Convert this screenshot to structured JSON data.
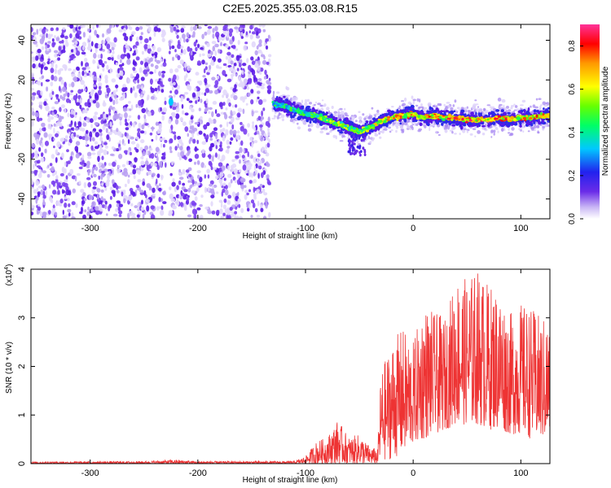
{
  "title": "C2E5.2025.355.03.08.R15",
  "chart_data": [
    {
      "type": "heatmap",
      "xlabel": "Height of straight line (km)",
      "ylabel": "Frequency (Hz)",
      "xlim": [
        -355,
        127
      ],
      "ylim": [
        -50,
        48
      ],
      "x_ticks": [
        -300,
        -200,
        -100,
        0,
        100
      ],
      "x_tick_labels": [
        "-300",
        "-200",
        "-100",
        "0",
        "100"
      ],
      "y_ticks": [
        -40,
        -20,
        0,
        20,
        40
      ],
      "y_tick_labels": [
        "-40",
        "-20",
        "0",
        "20",
        "40"
      ],
      "colorbar": {
        "label": "Normalized spectral amplitude",
        "range": [
          0.0,
          0.9
        ],
        "ticks": [
          0.0,
          0.2,
          0.4,
          0.6,
          0.8
        ],
        "tick_labels": [
          "0.0",
          "0.2",
          "0.4",
          "0.6",
          "0.8"
        ]
      },
      "noise_region_x": [
        -355,
        -133
      ],
      "gap_x": -228,
      "ridge": {
        "x": [
          -130,
          -120,
          -110,
          -100,
          -90,
          -80,
          -70,
          -60,
          -50,
          -40,
          -30,
          -20,
          -10,
          0,
          10,
          20,
          30,
          40,
          50,
          60,
          70,
          80,
          90,
          100,
          110,
          120,
          127
        ],
        "freq": [
          8,
          7,
          5,
          3,
          2,
          0,
          -2,
          -4,
          -6,
          -4,
          -1,
          1,
          2,
          3,
          1,
          2,
          1,
          1,
          0,
          0,
          0,
          1,
          0,
          1,
          1,
          2,
          2
        ],
        "level": [
          0.45,
          0.5,
          0.5,
          0.5,
          0.55,
          0.6,
          0.65,
          0.6,
          0.6,
          0.65,
          0.7,
          0.75,
          0.75,
          0.75,
          0.8,
          0.8,
          0.8,
          0.85,
          0.85,
          0.85,
          0.85,
          0.8,
          0.8,
          0.8,
          0.8,
          0.75,
          0.75
        ]
      }
    },
    {
      "type": "line",
      "xlabel": "Height of straight line (km)",
      "ylabel": "SNR (10 * v/v)",
      "y_multiplier_label": "(x10",
      "y_multiplier_exp": "4",
      "y_multiplier_close": ")",
      "xlim": [
        -355,
        127
      ],
      "ylim": [
        0,
        4
      ],
      "x_ticks": [
        -300,
        -200,
        -100,
        0,
        100
      ],
      "x_tick_labels": [
        "-300",
        "-200",
        "-100",
        "0",
        "100"
      ],
      "y_ticks": [
        0,
        1,
        2,
        3,
        4
      ],
      "y_tick_labels": [
        "0",
        "1",
        "2",
        "3",
        "4"
      ],
      "series": [
        {
          "name": "SNR",
          "color": "#ee3333",
          "x": [
            -355,
            -250,
            -220,
            -200,
            -110,
            -100,
            -90,
            -80,
            -70,
            -60,
            -50,
            -40,
            -33,
            -30,
            -20,
            -10,
            0,
            10,
            20,
            30,
            40,
            50,
            60,
            70,
            80,
            90,
            100,
            110,
            120,
            127
          ],
          "envelope": [
            0.04,
            0.05,
            0.08,
            0.05,
            0.05,
            0.15,
            0.45,
            0.55,
            0.9,
            0.55,
            0.6,
            0.35,
            0.3,
            1.9,
            2.5,
            2.8,
            2.5,
            3.3,
            3.1,
            3.0,
            3.9,
            3.8,
            4.0,
            3.7,
            3.6,
            3.1,
            3.3,
            3.2,
            3.0,
            3.0
          ],
          "floor": [
            0.0,
            0.0,
            0.0,
            0.0,
            0.0,
            0.0,
            0.0,
            0.0,
            0.0,
            0.0,
            0.0,
            0.0,
            0.0,
            0.05,
            0.1,
            0.2,
            0.4,
            0.5,
            0.6,
            0.7,
            0.8,
            0.8,
            0.8,
            0.7,
            0.7,
            0.6,
            0.6,
            0.5,
            0.5,
            0.5
          ]
        }
      ]
    }
  ]
}
